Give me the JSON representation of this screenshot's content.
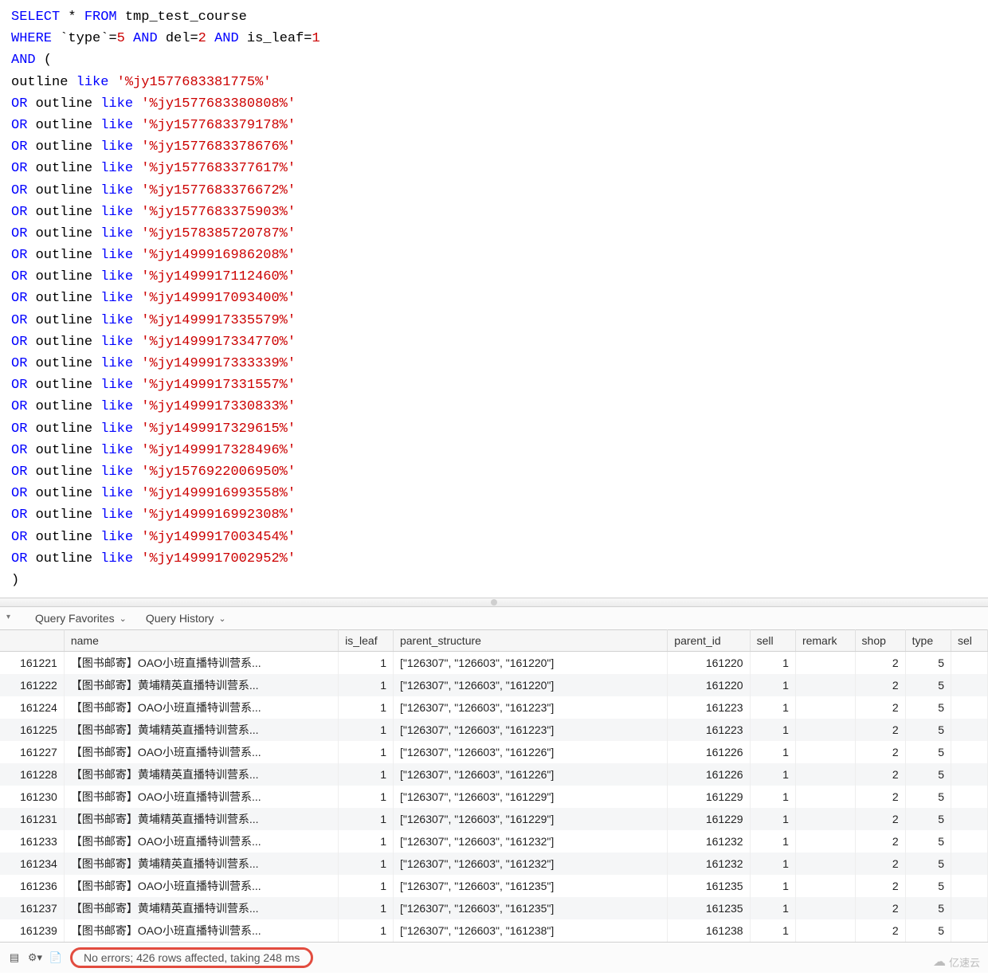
{
  "sql": {
    "select_kw": "SELECT",
    "star": "*",
    "from_kw": "FROM",
    "table": "tmp_test_course",
    "where_kw": "WHERE",
    "type_col": "`type`",
    "eq5": "5",
    "and_kw": "AND",
    "del_col": "del",
    "eq2": "2",
    "is_leaf_col": "is_leaf",
    "eq1": "1",
    "open_paren": "(",
    "outline_col": "outline",
    "like_kw": "like",
    "first_pattern": "'%jy1577683381775%'",
    "or_kw": "OR",
    "patterns": [
      "'%jy1577683380808%'",
      "'%jy1577683379178%'",
      "'%jy1577683378676%'",
      "'%jy1577683377617%'",
      "'%jy1577683376672%'",
      "'%jy1577683375903%'",
      "'%jy1578385720787%'",
      "'%jy1499916986208%'",
      "'%jy1499917112460%'",
      "'%jy1499917093400%'",
      "'%jy1499917335579%'",
      "'%jy1499917334770%'",
      "'%jy1499917333339%'",
      "'%jy1499917331557%'",
      "'%jy1499917330833%'",
      "'%jy1499917329615%'",
      "'%jy1499917328496%'",
      "'%jy1576922006950%'",
      "'%jy1499916993558%'",
      "'%jy1499916992308%'",
      "'%jy1499917003454%'",
      "'%jy1499917002952%'"
    ],
    "close_paren": ")"
  },
  "toolbar": {
    "favorites": "Query Favorites",
    "history": "Query History"
  },
  "columns": [
    "",
    "name",
    "is_leaf",
    "parent_structure",
    "parent_id",
    "sell",
    "remark",
    "shop",
    "type",
    "sel"
  ],
  "rows": [
    {
      "id": "161221",
      "name": "【图书邮寄】OAO小班直播特训营系...",
      "is_leaf": "1",
      "ps": "[\"126307\", \"126603\", \"161220\"]",
      "pid": "161220",
      "sell": "1",
      "remark": "",
      "shop": "2",
      "type": "5"
    },
    {
      "id": "161222",
      "name": "【图书邮寄】黄埔精英直播特训营系...",
      "is_leaf": "1",
      "ps": "[\"126307\", \"126603\", \"161220\"]",
      "pid": "161220",
      "sell": "1",
      "remark": "",
      "shop": "2",
      "type": "5"
    },
    {
      "id": "161224",
      "name": "【图书邮寄】OAO小班直播特训营系...",
      "is_leaf": "1",
      "ps": "[\"126307\", \"126603\", \"161223\"]",
      "pid": "161223",
      "sell": "1",
      "remark": "",
      "shop": "2",
      "type": "5"
    },
    {
      "id": "161225",
      "name": "【图书邮寄】黄埔精英直播特训营系...",
      "is_leaf": "1",
      "ps": "[\"126307\", \"126603\", \"161223\"]",
      "pid": "161223",
      "sell": "1",
      "remark": "",
      "shop": "2",
      "type": "5"
    },
    {
      "id": "161227",
      "name": "【图书邮寄】OAO小班直播特训营系...",
      "is_leaf": "1",
      "ps": "[\"126307\", \"126603\", \"161226\"]",
      "pid": "161226",
      "sell": "1",
      "remark": "",
      "shop": "2",
      "type": "5"
    },
    {
      "id": "161228",
      "name": "【图书邮寄】黄埔精英直播特训营系...",
      "is_leaf": "1",
      "ps": "[\"126307\", \"126603\", \"161226\"]",
      "pid": "161226",
      "sell": "1",
      "remark": "",
      "shop": "2",
      "type": "5"
    },
    {
      "id": "161230",
      "name": "【图书邮寄】OAO小班直播特训营系...",
      "is_leaf": "1",
      "ps": "[\"126307\", \"126603\", \"161229\"]",
      "pid": "161229",
      "sell": "1",
      "remark": "",
      "shop": "2",
      "type": "5"
    },
    {
      "id": "161231",
      "name": "【图书邮寄】黄埔精英直播特训营系...",
      "is_leaf": "1",
      "ps": "[\"126307\", \"126603\", \"161229\"]",
      "pid": "161229",
      "sell": "1",
      "remark": "",
      "shop": "2",
      "type": "5"
    },
    {
      "id": "161233",
      "name": "【图书邮寄】OAO小班直播特训营系...",
      "is_leaf": "1",
      "ps": "[\"126307\", \"126603\", \"161232\"]",
      "pid": "161232",
      "sell": "1",
      "remark": "",
      "shop": "2",
      "type": "5"
    },
    {
      "id": "161234",
      "name": "【图书邮寄】黄埔精英直播特训营系...",
      "is_leaf": "1",
      "ps": "[\"126307\", \"126603\", \"161232\"]",
      "pid": "161232",
      "sell": "1",
      "remark": "",
      "shop": "2",
      "type": "5"
    },
    {
      "id": "161236",
      "name": "【图书邮寄】OAO小班直播特训营系...",
      "is_leaf": "1",
      "ps": "[\"126307\", \"126603\", \"161235\"]",
      "pid": "161235",
      "sell": "1",
      "remark": "",
      "shop": "2",
      "type": "5"
    },
    {
      "id": "161237",
      "name": "【图书邮寄】黄埔精英直播特训营系...",
      "is_leaf": "1",
      "ps": "[\"126307\", \"126603\", \"161235\"]",
      "pid": "161235",
      "sell": "1",
      "remark": "",
      "shop": "2",
      "type": "5"
    },
    {
      "id": "161239",
      "name": "【图书邮寄】OAO小班直播特训营系...",
      "is_leaf": "1",
      "ps": "[\"126307\", \"126603\", \"161238\"]",
      "pid": "161238",
      "sell": "1",
      "remark": "",
      "shop": "2",
      "type": "5"
    }
  ],
  "status": {
    "message": "No errors; 426 rows affected, taking 248 ms"
  },
  "watermark": "亿速云",
  "theme": {
    "keyword_color": "#0000ff",
    "string_color": "#cc0000",
    "number_color": "#cc0000",
    "plain_color": "#000000",
    "header_bg": "#f6f6f6",
    "row_alt_bg": "#f5f6f7",
    "border_color": "#d0d0d0",
    "highlight_border": "#e24c3f"
  }
}
